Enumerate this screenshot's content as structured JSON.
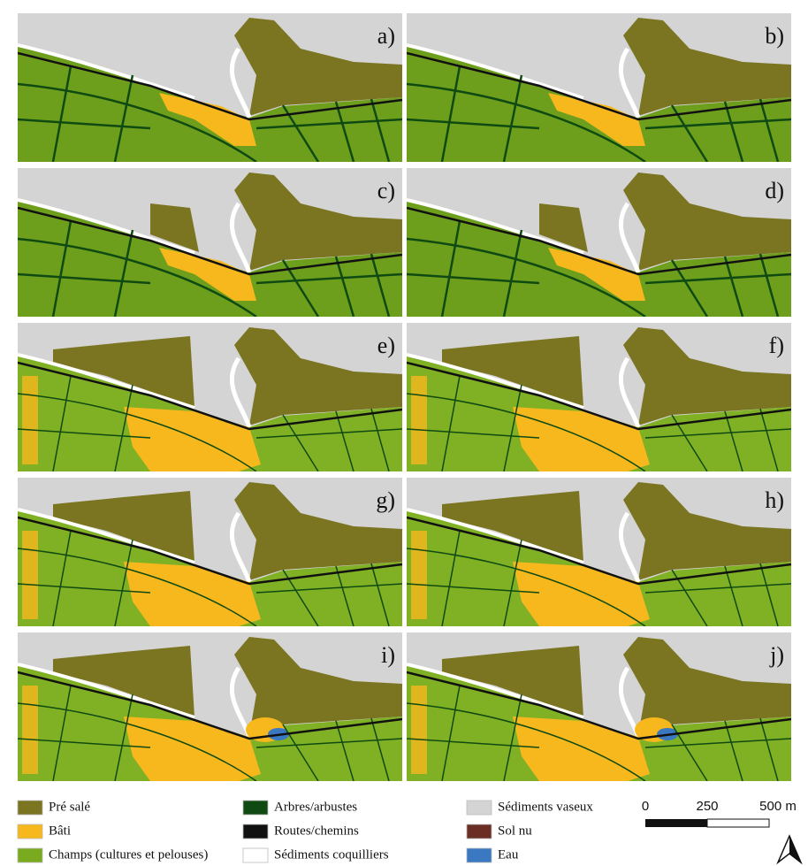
{
  "panels": [
    "a)",
    "b)",
    "c)",
    "d)",
    "e)",
    "f)",
    "g)",
    "h)",
    "i)",
    "j)"
  ],
  "legend": [
    {
      "name": "Pré salé",
      "color": "#7b7420"
    },
    {
      "name": "Bâti",
      "color": "#f7b81e"
    },
    {
      "name": "Champs (cultures et pelouses)",
      "color": "#7aab1f"
    },
    {
      "name": "Arbres/arbustes",
      "color": "#0f4a12"
    },
    {
      "name": "Routes/chemins",
      "color": "#111111"
    },
    {
      "name": "Sédiments coquilliers",
      "color": "#ffffff"
    },
    {
      "name": "Sédiments vaseux",
      "color": "#d4d4d4"
    },
    {
      "name": "Sol nu",
      "color": "#6b2e24"
    },
    {
      "name": "Eau",
      "color": "#3a78c2"
    }
  ],
  "scale_bar": {
    "labels": [
      "0",
      "250",
      "500 m"
    ]
  }
}
